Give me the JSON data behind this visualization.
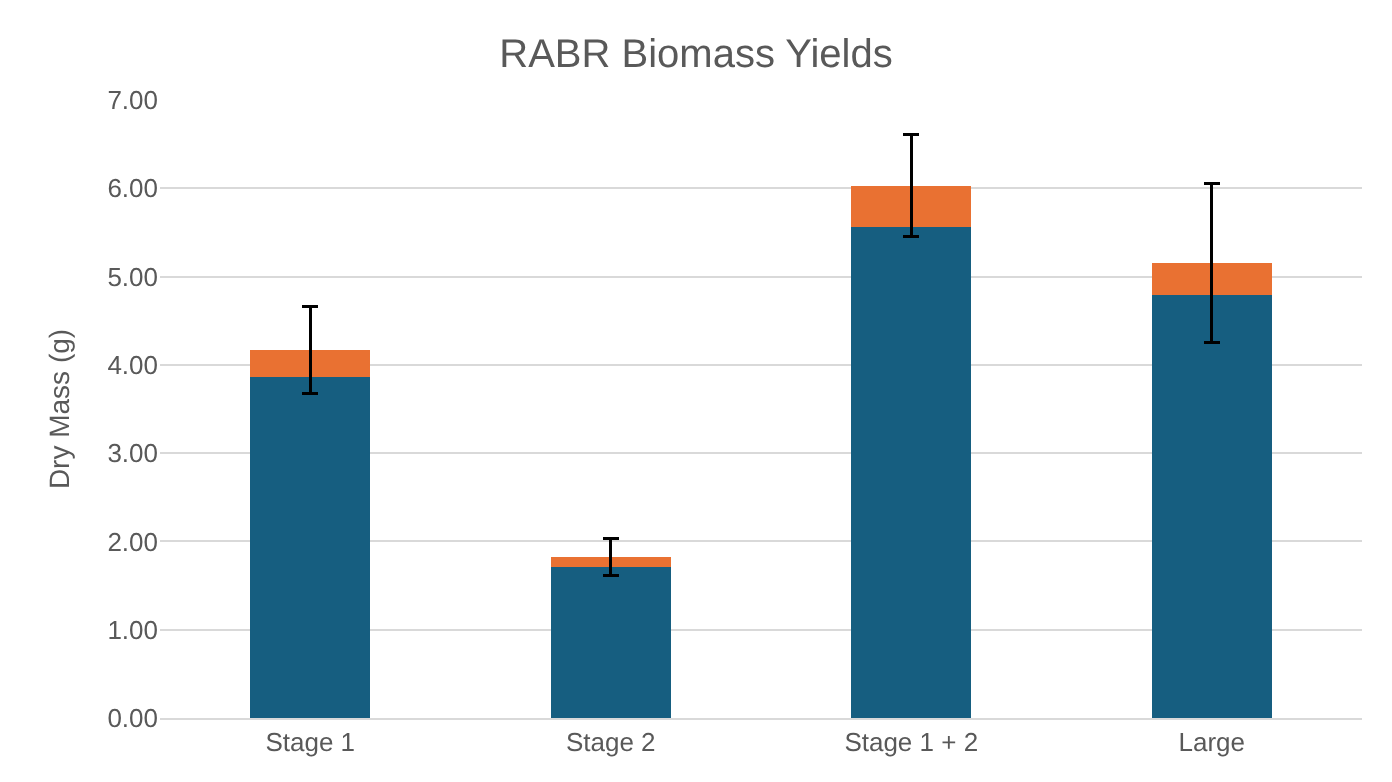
{
  "chart_data": {
    "type": "bar",
    "title": "RABR Biomass Yields",
    "ylabel": "Dry Mass (g)",
    "categories": [
      "Stage 1",
      "Stage 2",
      "Stage 1 + 2",
      "Large"
    ],
    "stacked": true,
    "series": [
      {
        "color": "#165e80",
        "values": [
          3.86,
          1.71,
          5.56,
          4.79
        ]
      },
      {
        "color": "#e97132",
        "values": [
          0.31,
          0.11,
          0.47,
          0.36
        ],
        "errors": [
          0.49,
          0.21,
          0.58,
          0.9
        ]
      }
    ],
    "ylim": [
      0,
      7
    ],
    "yticks": [
      {
        "value": 0,
        "label": "0.00"
      },
      {
        "value": 1,
        "label": "1.00"
      },
      {
        "value": 2,
        "label": "2.00"
      },
      {
        "value": 3,
        "label": "3.00"
      },
      {
        "value": 4,
        "label": "4.00"
      },
      {
        "value": 5,
        "label": "5.00"
      },
      {
        "value": 6,
        "label": "6.00"
      },
      {
        "value": 7,
        "label": "7.00"
      }
    ],
    "grid": "y"
  }
}
